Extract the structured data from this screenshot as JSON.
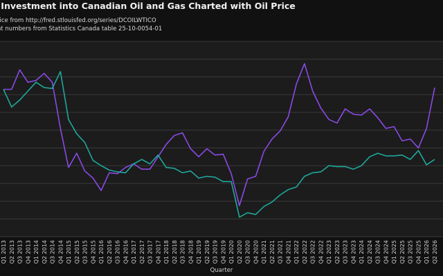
{
  "chart_data": {
    "type": "line",
    "title": "d Investment into Canadian Oil and Gas Charted with Oil Price",
    "notes": [
      "rice from http://fred.stlouisfed.org/series/DCOILWTICO",
      "nt numbers from Statistics Canada table 25-10-0054-01"
    ],
    "xlabel": "Quarter",
    "ylabel": "",
    "grid": true,
    "categories": [
      "Q1 2013",
      "Q2 2013",
      "Q3 2013",
      "Q4 2013",
      "Q1 2014",
      "Q2 2014",
      "Q3 2014",
      "Q4 2014",
      "Q1 2015",
      "Q2 2015",
      "Q3 2015",
      "Q4 2015",
      "Q1 2016",
      "Q2 2016",
      "Q3 2016",
      "Q4 2016",
      "Q1 2017",
      "Q2 2017",
      "Q3 2017",
      "Q4 2017",
      "Q1 2018",
      "Q2 2018",
      "Q3 2018",
      "Q4 2018",
      "Q1 2019",
      "Q2 2019",
      "Q3 2019",
      "Q4 2019",
      "Q1 2020",
      "Q2 2020",
      "Q3 2020",
      "Q4 2020",
      "Q1 2021",
      "Q2 2021",
      "Q3 2021",
      "Q4 2021",
      "Q1 2022",
      "Q2 2022",
      "Q3 2022",
      "Q4 2022",
      "Q1 2023",
      "Q2 2023",
      "Q3 2023",
      "Q4 2023",
      "Q1 2024",
      "Q2 2024",
      "Q3 2024",
      "Q4 2024",
      "Q1 2025",
      "Q2 2025",
      "Q3 2025",
      "Q4 2025",
      "Q1 2026",
      "Q2 2026"
    ],
    "xticks": [
      "Q1 2013",
      "Q2 2013",
      "Q3 2013",
      "Q4 2013",
      "Q1 2014",
      "Q2 2014",
      "Q3 2014",
      "Q4 2014",
      "Q1 2015",
      "Q2 2015",
      "Q3 2015",
      "Q4 2015",
      "Q1 2016",
      "Q2 2016",
      "Q3 2016",
      "Q4 2016",
      "Q1 2017",
      "Q2 2017",
      "Q3 2017",
      "Q4 2017",
      "Q1 2018",
      "Q2 2018",
      "Q3 2018",
      "Q4 2018",
      "Q1 2019",
      "Q2 2019",
      "Q3 2019",
      "Q4 2019",
      "Q1 2020",
      "Q2 2020",
      "Q3 2020",
      "Q4 2020",
      "Q1 2021",
      "Q2 2021",
      "Q3 2021",
      "Q4 2021",
      "Q1 2022",
      "Q2 2022",
      "Q3 2022",
      "Q4 2022",
      "Q1 2023",
      "Q2 2023",
      "Q3 2023",
      "Q4 2023",
      "Q1 2024",
      "Q2 2024",
      "Q3 2024",
      "Q4 2024",
      "Q1 2025",
      "Q2 2025",
      "Q3 2025",
      "Q4 2025",
      "Q1 2026",
      "Q2 2026"
    ],
    "ylim": [
      0,
      11
    ],
    "series": [
      {
        "color": "#8a4ae6",
        "values": [
          8.3,
          8.3,
          9.4,
          8.7,
          8.8,
          9.2,
          8.7,
          6.1,
          3.9,
          4.7,
          3.7,
          3.3,
          2.6,
          3.6,
          3.55,
          3.9,
          4.1,
          3.8,
          3.8,
          4.5,
          5.2,
          5.7,
          5.85,
          4.95,
          4.5,
          4.95,
          4.6,
          4.65,
          3.55,
          1.75,
          3.25,
          3.4,
          4.8,
          5.5,
          5.95,
          6.75,
          8.6,
          9.75,
          8.2,
          7.25,
          6.6,
          6.4,
          7.2,
          6.9,
          6.85,
          7.2,
          6.7,
          6.1,
          6.2,
          5.4,
          5.5,
          5.0,
          6.1,
          8.4
        ]
      },
      {
        "color": "#1fa89c",
        "values": [
          8.3,
          7.3,
          7.7,
          8.2,
          8.7,
          8.4,
          8.35,
          9.3,
          6.6,
          5.8,
          5.3,
          4.3,
          4.0,
          3.75,
          3.65,
          3.6,
          4.1,
          4.35,
          4.1,
          4.6,
          3.9,
          3.85,
          3.6,
          3.7,
          3.3,
          3.4,
          3.35,
          3.1,
          3.1,
          1.1,
          1.35,
          1.25,
          1.7,
          1.95,
          2.35,
          2.65,
          2.8,
          3.4,
          3.6,
          3.65,
          4.0,
          3.95,
          3.95,
          3.8,
          4.0,
          4.5,
          4.7,
          4.55,
          4.55,
          4.6,
          4.35,
          4.85,
          4.05,
          4.35
        ]
      }
    ]
  }
}
